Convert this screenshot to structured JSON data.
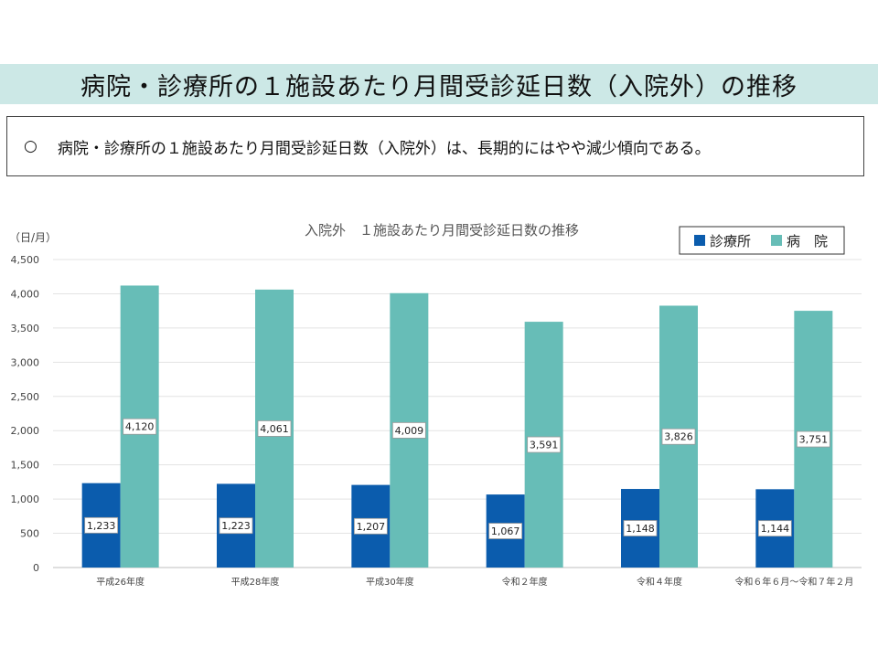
{
  "page_title": "病院・診療所の１施設あたり月間受診延日数（入院外）の推移",
  "summary": {
    "bullet": "○",
    "text": "病院・診療所の１施設あたり月間受診延日数（入院外）は、長期的にはやや減少傾向である。"
  },
  "chart_data": {
    "type": "bar",
    "title": "入院外　１施設あたり月間受診延日数の推移",
    "ylabel": "（日/月）",
    "xlabel": "",
    "ylim": [
      0,
      4500
    ],
    "yticks": [
      0,
      500,
      1000,
      1500,
      2000,
      2500,
      3000,
      3500,
      4000,
      4500
    ],
    "ytick_labels": [
      "0",
      "500",
      "1,000",
      "1,500",
      "2,000",
      "2,500",
      "3,000",
      "3,500",
      "4,000",
      "4,500"
    ],
    "grid": true,
    "legend_position": "top-right",
    "categories": [
      "平成26年度",
      "平成28年度",
      "平成30年度",
      "令和２年度",
      "令和４年度",
      "令和６年６月～令和７年２月"
    ],
    "series": [
      {
        "name": "診療所",
        "color": "#0b5cad",
        "values": [
          1233,
          1223,
          1207,
          1067,
          1148,
          1144
        ],
        "labels": [
          "1,233",
          "1,223",
          "1,207",
          "1,067",
          "1,148",
          "1,144"
        ]
      },
      {
        "name": "病　院",
        "color": "#67bdb7",
        "values": [
          4120,
          4061,
          4009,
          3591,
          3826,
          3751
        ],
        "labels": [
          "4,120",
          "4,061",
          "4,009",
          "3,591",
          "3,826",
          "3,751"
        ]
      }
    ]
  }
}
